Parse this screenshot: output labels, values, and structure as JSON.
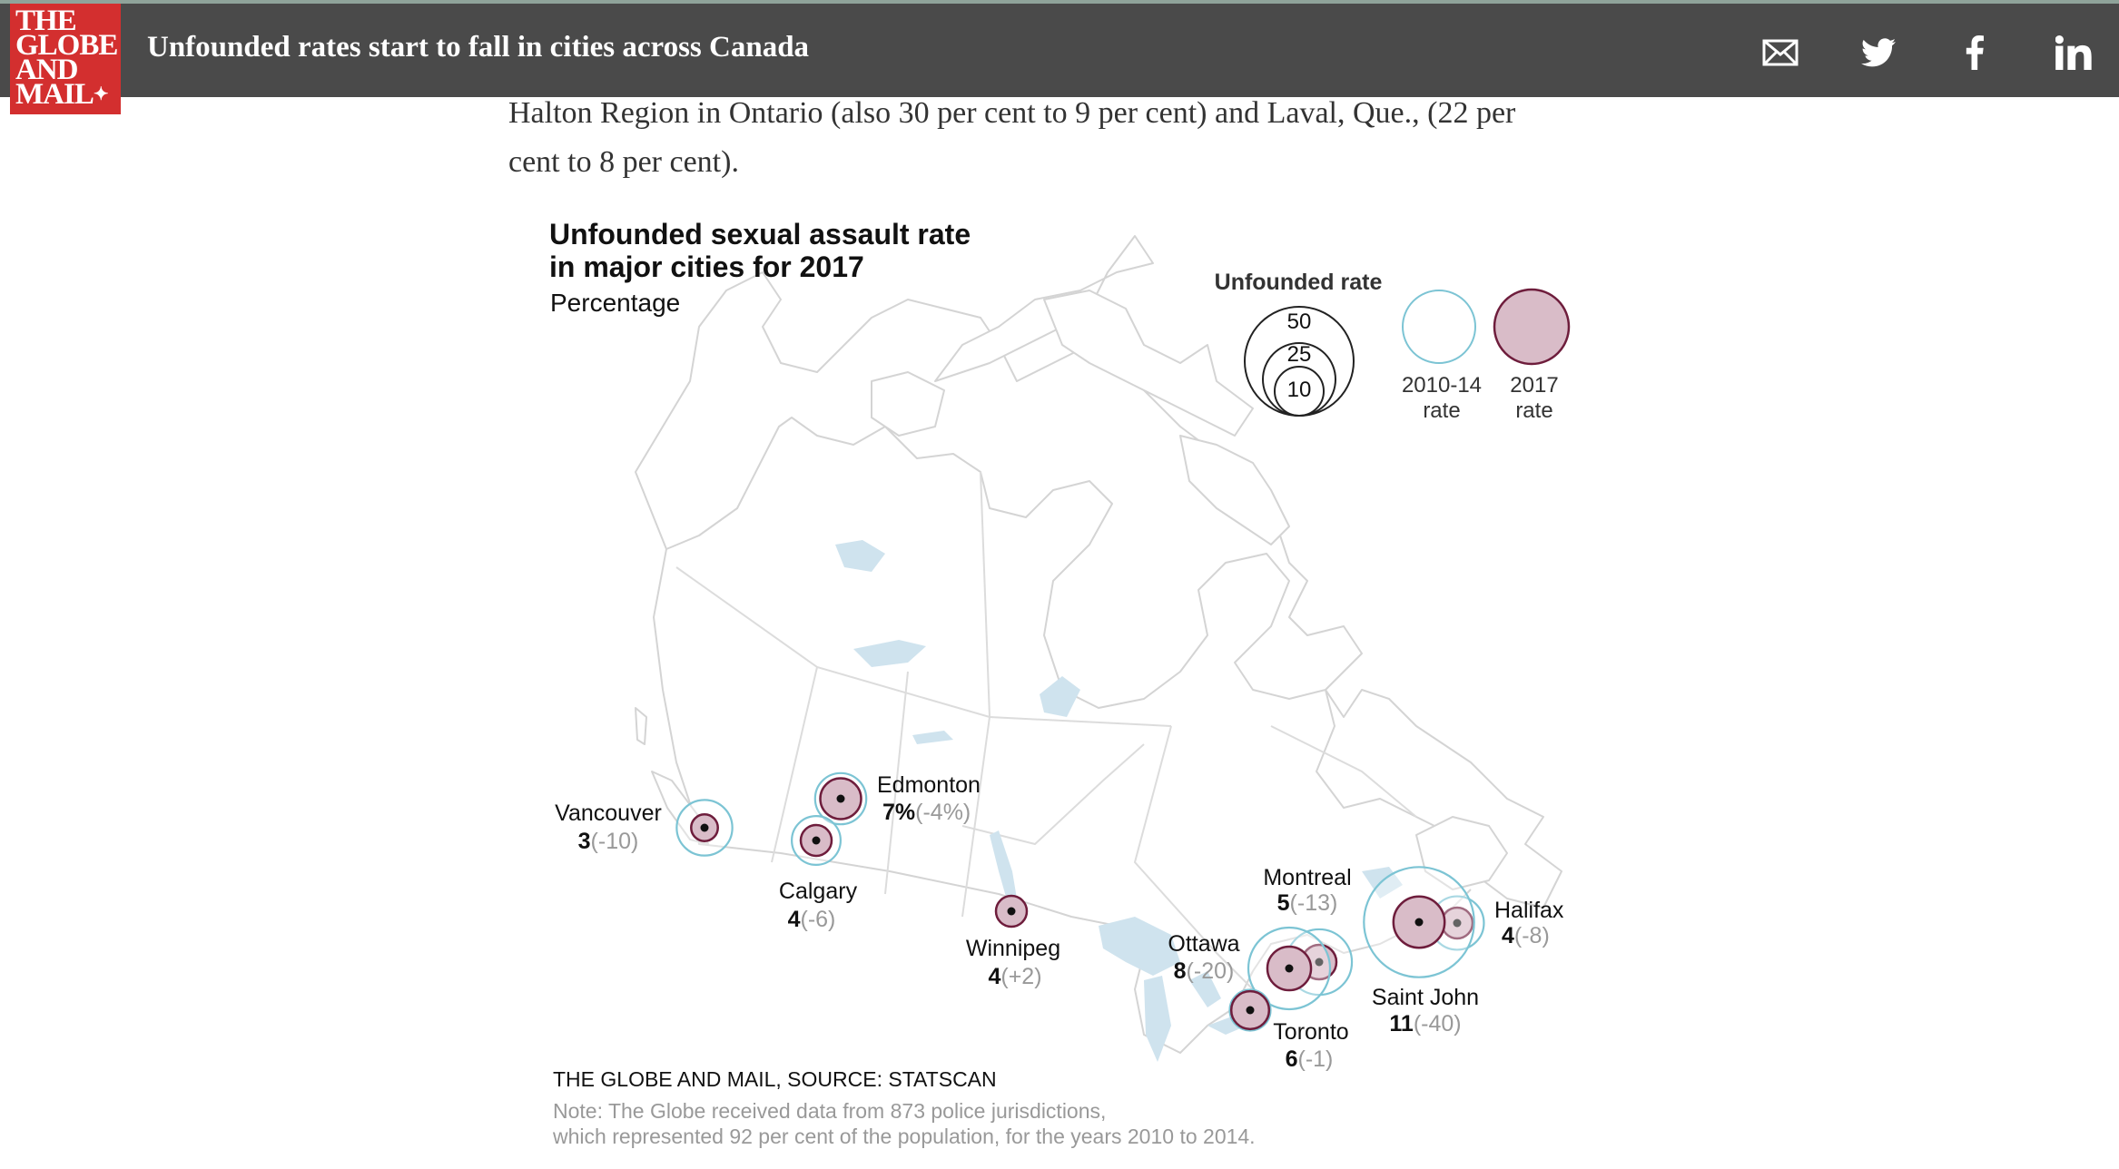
{
  "header": {
    "logo_lines": [
      "THE",
      "GLOBE",
      "AND",
      "MAIL"
    ],
    "headline": "Unfounded rates start to fall in cities across Canada",
    "share_icons": [
      "mail-icon",
      "twitter-icon",
      "facebook-icon",
      "linkedin-icon"
    ]
  },
  "article": {
    "line1": "Halton Region in Ontario (also 30 per cent to 9 per cent) and Laval, Que., (22 per",
    "line2": "cent to 8 per cent)."
  },
  "map": {
    "title_line1": "Unfounded sexual assault rate",
    "title_line2": "in major cities for 2017",
    "subtitle": "Percentage",
    "legend": {
      "heading": "Unfounded rate",
      "sizes": [
        "50",
        "25",
        "10"
      ],
      "old_label_1": "2010-14",
      "old_label_2": "rate",
      "new_label_1": "2017",
      "new_label_2": "rate"
    },
    "colors": {
      "old_ring": "#7cc4d4",
      "new_fill": "#d9bcc8",
      "new_ring": "#6e1d3c",
      "land_stroke": "#d6d6d6",
      "water": "#cfe3ee"
    },
    "cities": [
      {
        "name": "Vancouver",
        "rate": "3",
        "change": "(-10)",
        "rate_2017": 3,
        "rate_2010_14": 13
      },
      {
        "name": "Edmonton",
        "rate": "7%",
        "change": "(-4%)",
        "rate_2017": 7,
        "rate_2010_14": 11
      },
      {
        "name": "Calgary",
        "rate": "4",
        "change": "(-6)",
        "rate_2017": 4,
        "rate_2010_14": 10
      },
      {
        "name": "Winnipeg",
        "rate": "4",
        "change": "(+2)",
        "rate_2017": 4,
        "rate_2010_14": 2
      },
      {
        "name": "Montreal",
        "rate": "5",
        "change": "(-13)",
        "rate_2017": 5,
        "rate_2010_14": 18
      },
      {
        "name": "Ottawa",
        "rate": "8",
        "change": "(-20)",
        "rate_2017": 8,
        "rate_2010_14": 28
      },
      {
        "name": "Toronto",
        "rate": "6",
        "change": "(-1)",
        "rate_2017": 6,
        "rate_2010_14": 7
      },
      {
        "name": "Halifax",
        "rate": "4",
        "change": "(-8)",
        "rate_2017": 4,
        "rate_2010_14": 12
      },
      {
        "name": "Saint John",
        "rate": "11",
        "change": "(-40)",
        "rate_2017": 11,
        "rate_2010_14": 51
      }
    ],
    "source": "THE GLOBE AND MAIL, SOURCE: STATSCAN",
    "note_line1": "Note: The Globe received data from 873 police jurisdictions,",
    "note_line2": "which represented 92 per cent of the population, for the years 2010 to 2014."
  }
}
